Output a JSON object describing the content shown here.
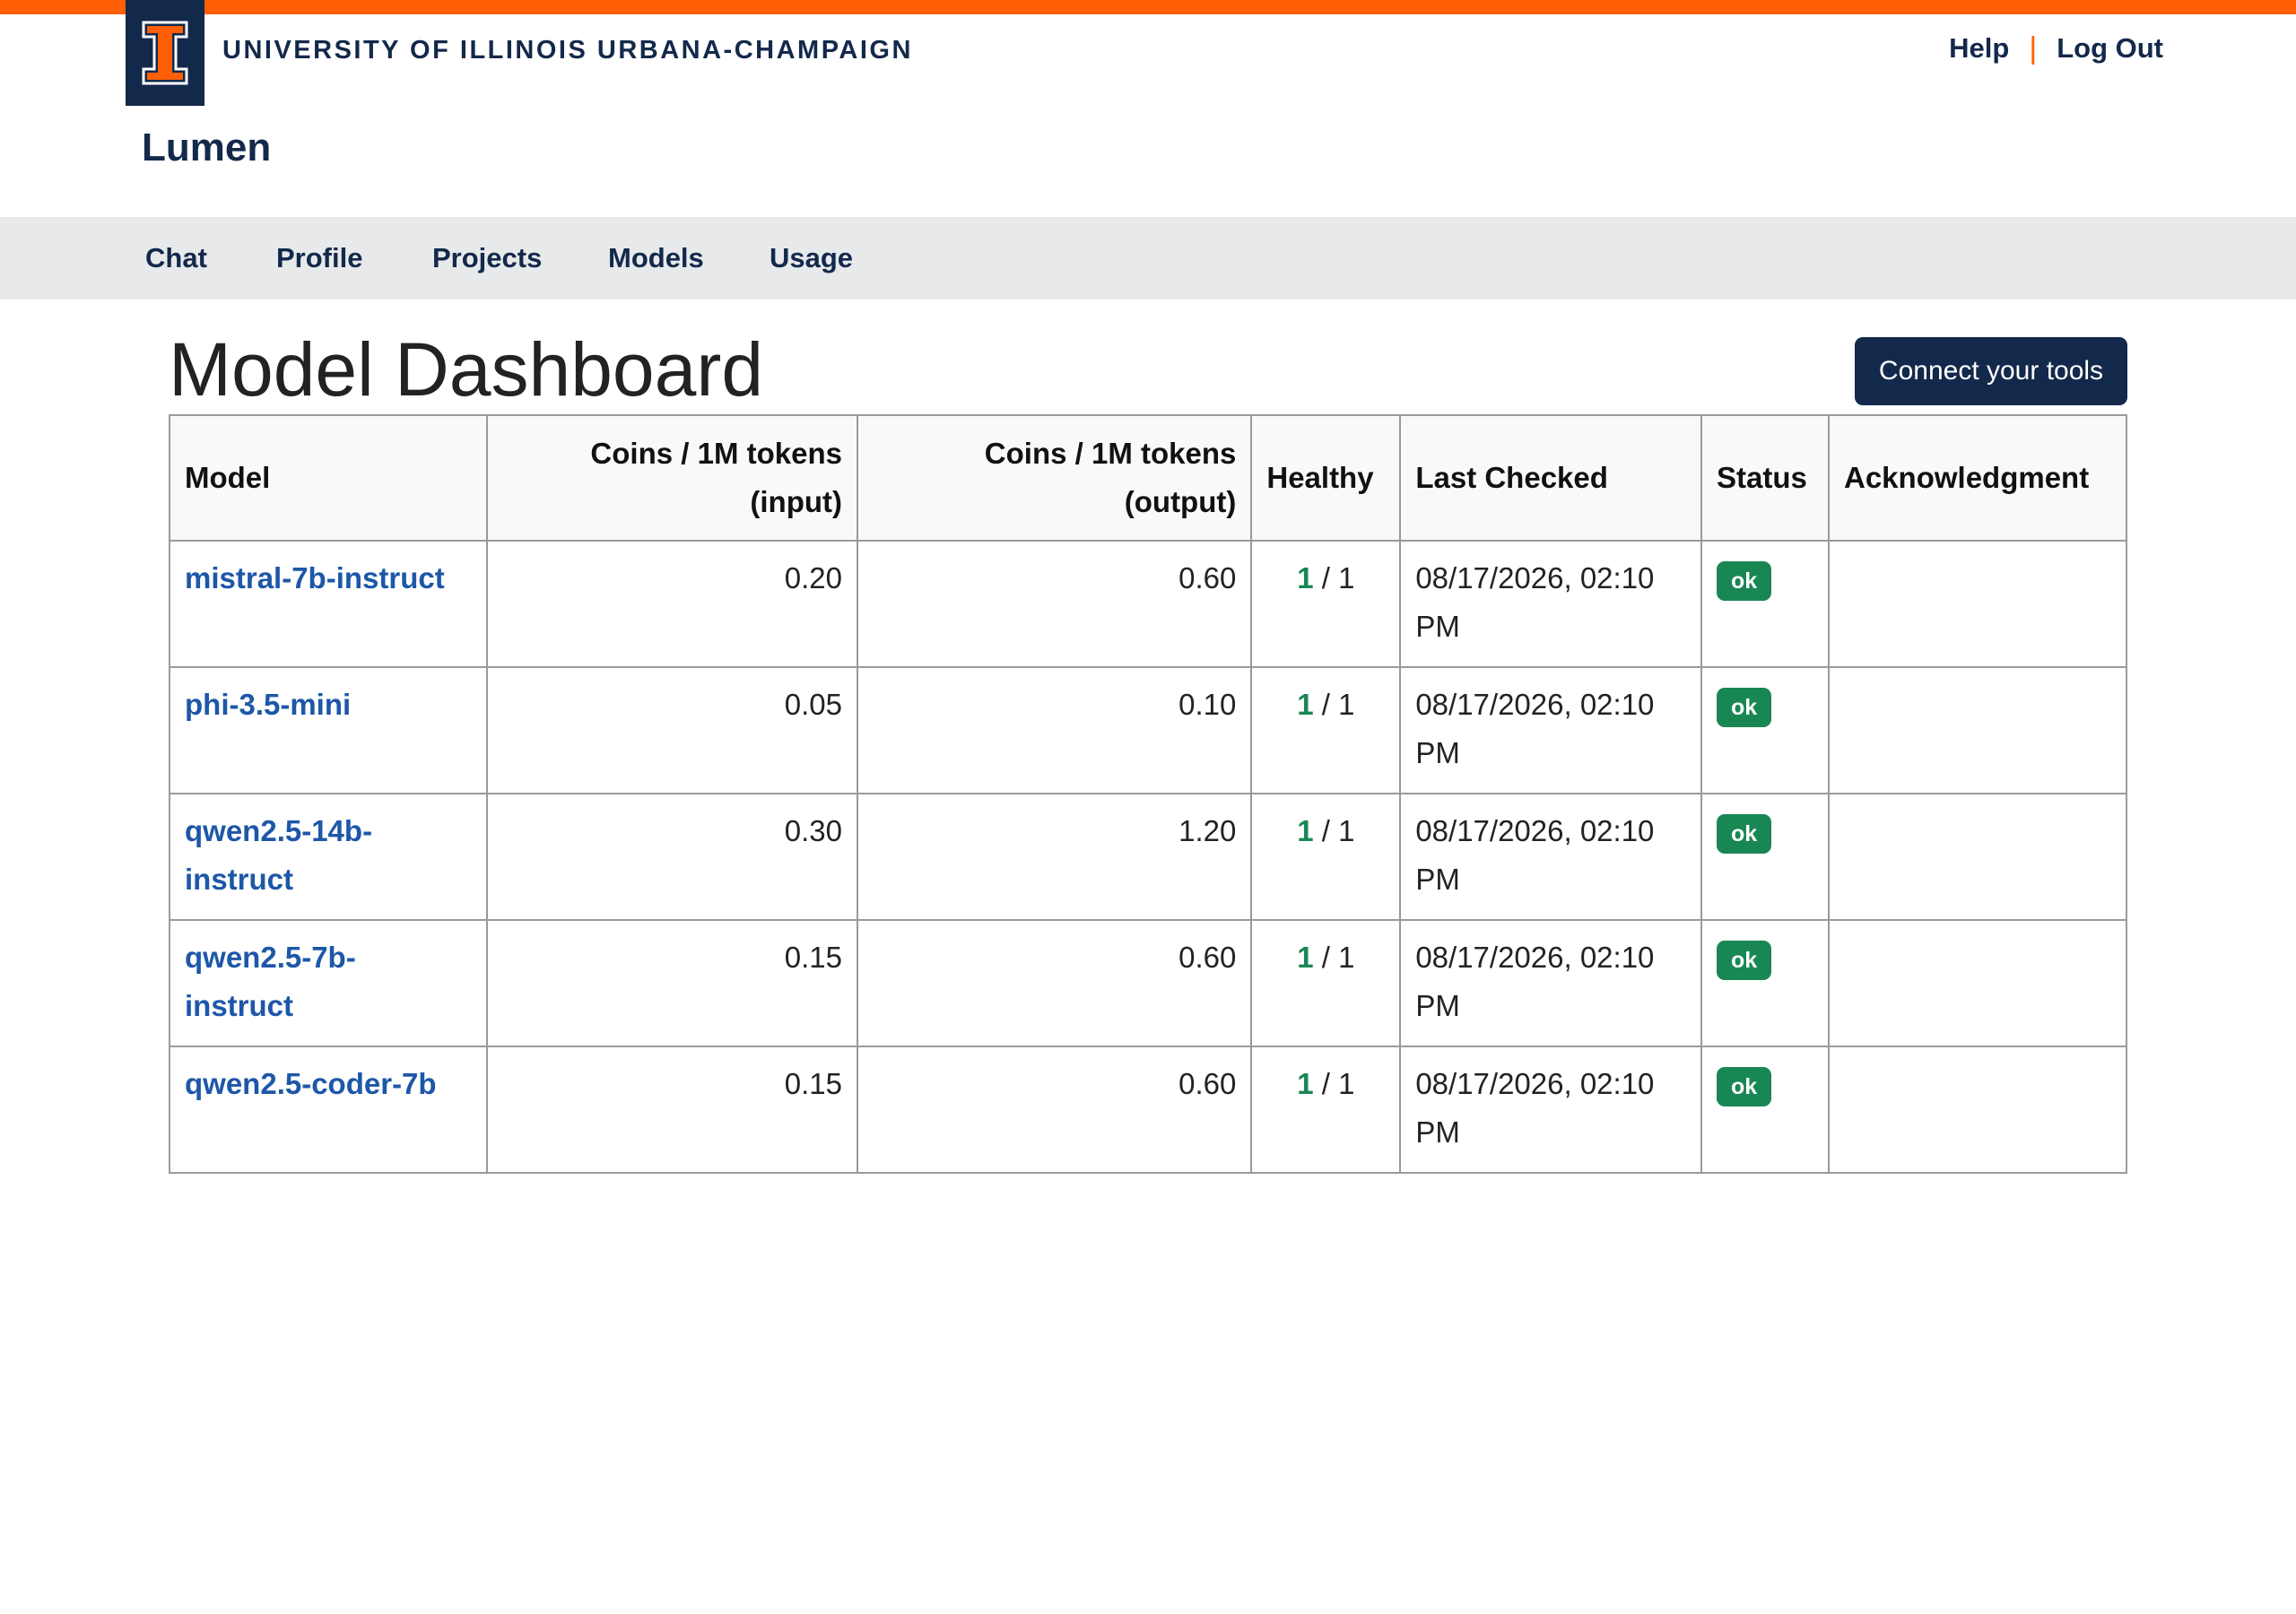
{
  "header": {
    "university_name": "UNIVERSITY OF ILLINOIS URBANA-CHAMPAIGN",
    "logo_letter": "I",
    "help_label": "Help",
    "separator": "|",
    "logout_label": "Log Out",
    "app_title": "Lumen"
  },
  "nav": {
    "items": [
      {
        "label": "Chat"
      },
      {
        "label": "Profile"
      },
      {
        "label": "Projects"
      },
      {
        "label": "Models"
      },
      {
        "label": "Usage"
      }
    ]
  },
  "main": {
    "title": "Model Dashboard",
    "connect_button_label": "Connect your tools"
  },
  "table": {
    "headers": {
      "model": "Model",
      "input_line1": "Coins / 1M tokens",
      "input_line2": "(input)",
      "output_line1": "Coins / 1M tokens",
      "output_line2": "(output)",
      "healthy": "Healthy",
      "last_checked": "Last Checked",
      "status": "Status",
      "acknowledgment": "Acknowledgment"
    },
    "rows": [
      {
        "model_line1": "mistral-7b-instruct",
        "model_line2": "",
        "input": "0.20",
        "output": "0.60",
        "healthy": "1",
        "total": "/ 1",
        "date_line1": "08/17/2026, 02:10",
        "date_line2": "PM",
        "status": "ok",
        "ack": ""
      },
      {
        "model_line1": "phi-3.5-mini",
        "model_line2": "",
        "input": "0.05",
        "output": "0.10",
        "healthy": "1",
        "total": "/ 1",
        "date_line1": "08/17/2026, 02:10",
        "date_line2": "PM",
        "status": "ok",
        "ack": ""
      },
      {
        "model_line1": "qwen2.5-14b-",
        "model_line2": "instruct",
        "input": "0.30",
        "output": "1.20",
        "healthy": "1",
        "total": "/ 1",
        "date_line1": "08/17/2026, 02:10",
        "date_line2": "PM",
        "status": "ok",
        "ack": ""
      },
      {
        "model_line1": "qwen2.5-7b-",
        "model_line2": "instruct",
        "input": "0.15",
        "output": "0.60",
        "healthy": "1",
        "total": "/ 1",
        "date_line1": "08/17/2026, 02:10",
        "date_line2": "PM",
        "status": "ok",
        "ack": ""
      },
      {
        "model_line1": "qwen2.5-coder-7b",
        "model_line2": "",
        "input": "0.15",
        "output": "0.60",
        "healthy": "1",
        "total": "/ 1",
        "date_line1": "08/17/2026, 02:10",
        "date_line2": "PM",
        "status": "ok",
        "ack": ""
      }
    ]
  },
  "colors": {
    "illinois_orange": "#ff5f05",
    "illinois_blue": "#13294b",
    "link_blue": "#1d57a8",
    "ok_green": "#198754"
  }
}
